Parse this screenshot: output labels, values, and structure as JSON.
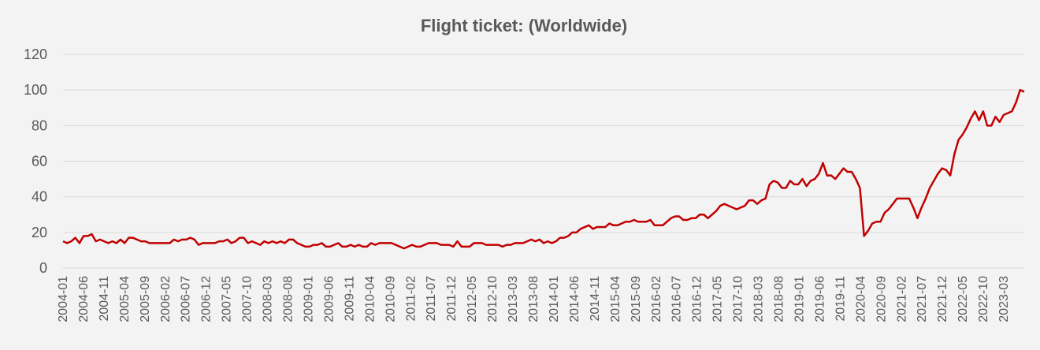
{
  "chart_data": {
    "type": "line",
    "title": "Flight ticket: (Worldwide)",
    "xlabel": "",
    "ylabel": "",
    "ylim": [
      0,
      120
    ],
    "yticks": [
      0,
      20,
      40,
      60,
      80,
      100,
      120
    ],
    "grid": true,
    "legend": "none",
    "colors": {
      "background": "#f3f3f3",
      "line": "#c00000",
      "grid": "#d9d9d9",
      "text": "#595959"
    },
    "x_start": "2004-01",
    "x_end": "2023-08",
    "x_tick_labels": [
      "2004-01",
      "2004-06",
      "2004-11",
      "2005-04",
      "2005-09",
      "2006-02",
      "2006-07",
      "2006-12",
      "2007-05",
      "2007-10",
      "2008-03",
      "2008-08",
      "2009-01",
      "2009-06",
      "2009-11",
      "2010-04",
      "2010-09",
      "2011-02",
      "2011-07",
      "2011-12",
      "2012-05",
      "2012-10",
      "2013-03",
      "2013-08",
      "2014-01",
      "2014-06",
      "2014-11",
      "2015-04",
      "2015-09",
      "2016-02",
      "2016-07",
      "2016-12",
      "2017-05",
      "2017-10",
      "2018-03",
      "2018-08",
      "2019-01",
      "2019-06",
      "2019-11",
      "2020-04",
      "2020-09",
      "2021-02",
      "2021-07",
      "2021-12",
      "2022-05",
      "2022-10",
      "2023-03"
    ],
    "series": [
      {
        "values": [
          15,
          14,
          15,
          17,
          14,
          18,
          18,
          19,
          15,
          16,
          15,
          14,
          15,
          14,
          16,
          14,
          17,
          17,
          16,
          15,
          15,
          14,
          14,
          14,
          14,
          14,
          14,
          16,
          15,
          16,
          16,
          17,
          16,
          13,
          14,
          14,
          14,
          14,
          15,
          15,
          16,
          14,
          15,
          17,
          17,
          14,
          15,
          14,
          13,
          15,
          14,
          15,
          14,
          15,
          14,
          16,
          16,
          14,
          13,
          12,
          12,
          13,
          13,
          14,
          12,
          12,
          13,
          14,
          12,
          12,
          13,
          12,
          13,
          12,
          12,
          14,
          13,
          14,
          14,
          14,
          14,
          13,
          12,
          11,
          12,
          13,
          12,
          12,
          13,
          14,
          14,
          14,
          13,
          13,
          13,
          12,
          15,
          12,
          12,
          12,
          14,
          14,
          14,
          13,
          13,
          13,
          13,
          12,
          13,
          13,
          14,
          14,
          14,
          15,
          16,
          15,
          16,
          14,
          15,
          14,
          15,
          17,
          17,
          18,
          20,
          20,
          22,
          23,
          24,
          22,
          23,
          23,
          23,
          25,
          24,
          24,
          25,
          26,
          26,
          27,
          26,
          26,
          26,
          27,
          24,
          24,
          24,
          26,
          28,
          29,
          29,
          27,
          27,
          28,
          28,
          30,
          30,
          28,
          30,
          32,
          35,
          36,
          35,
          34,
          33,
          34,
          35,
          38,
          38,
          36,
          38,
          39,
          47,
          49,
          48,
          45,
          45,
          49,
          47,
          47,
          50,
          46,
          49,
          50,
          53,
          59,
          52,
          52,
          50,
          53,
          56,
          54,
          54,
          50,
          45,
          18,
          21,
          25,
          26,
          26,
          31,
          33,
          36,
          39,
          39,
          39,
          39,
          34,
          28,
          34,
          39,
          45,
          49,
          53,
          56,
          55,
          52,
          64,
          72,
          75,
          79,
          84,
          88,
          83,
          88,
          80,
          80,
          85,
          82,
          86,
          87,
          88,
          93,
          100,
          99
        ]
      }
    ]
  }
}
